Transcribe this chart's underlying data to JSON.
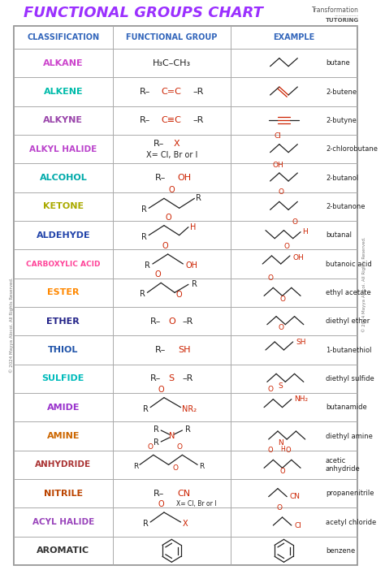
{
  "title": "FUNCTIONAL GROUPS CHART",
  "title_color": "#9B30FF",
  "header_color": "#3366BB",
  "bg_color": "#FFFFFF",
  "border_color": "#AAAAAA",
  "logo_text": "Transformation\nTUTORING",
  "copyright": "© 2024 Mayya Alocoi. All Rights Reserved.",
  "rows": [
    {
      "class": "ALKANE",
      "class_color": "#CC44CC"
    },
    {
      "class": "ALKENE",
      "class_color": "#00BBAA"
    },
    {
      "class": "ALKYNE",
      "class_color": "#9944AA"
    },
    {
      "class": "ALKYL HALIDE",
      "class_color": "#BB44CC"
    },
    {
      "class": "ALCOHOL",
      "class_color": "#00AAAA"
    },
    {
      "class": "KETONE",
      "class_color": "#AAAA00"
    },
    {
      "class": "ALDEHYDE",
      "class_color": "#2244AA"
    },
    {
      "class": "CARBOXYLIC ACID",
      "class_color": "#FF4499"
    },
    {
      "class": "ESTER",
      "class_color": "#FF8800"
    },
    {
      "class": "ETHER",
      "class_color": "#222288"
    },
    {
      "class": "THIOL",
      "class_color": "#2255AA"
    },
    {
      "class": "SULFIDE",
      "class_color": "#00BBBB"
    },
    {
      "class": "AMIDE",
      "class_color": "#9933CC"
    },
    {
      "class": "AMINE",
      "class_color": "#CC6600"
    },
    {
      "class": "ANHYDRIDE",
      "class_color": "#AA3333"
    },
    {
      "class": "NITRILE",
      "class_color": "#BB4400"
    },
    {
      "class": "ACYL HALIDE",
      "class_color": "#9944BB"
    },
    {
      "class": "AROMATIC",
      "class_color": "#333333"
    }
  ],
  "col_headers": [
    "CLASSIFICATION",
    "FUNCTIONAL GROUP",
    "EXAMPLE"
  ],
  "examples": [
    "butane",
    "2-butene",
    "2-butyne",
    "2-chlorobutane",
    "2-butanol",
    "2-butanone",
    "butanal",
    "butanoic acid",
    "ethyl acetate",
    "diethyl ether",
    "1-butanethiol",
    "diethyl sulfide",
    "butanamide",
    "diethyl amine",
    "acetic\nanhydride",
    "propanenitrile",
    "acetyl chloride",
    "benzene"
  ]
}
